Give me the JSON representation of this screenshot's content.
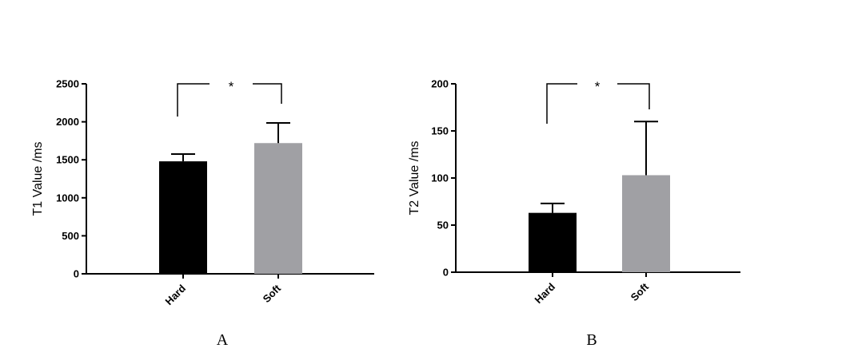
{
  "chart_data": [
    {
      "type": "bar",
      "panel_label": "A",
      "ylabel": "T1 Value /ms",
      "categories": [
        "Hard",
        "Soft"
      ],
      "values": [
        1480,
        1720
      ],
      "error_upper": [
        1575,
        1985
      ],
      "bar_colors": [
        "#000000",
        "#a0a0a4"
      ],
      "ylim": [
        0,
        2500
      ],
      "yticks": [
        "0",
        "500",
        "1000",
        "1500",
        "2000",
        "2500"
      ],
      "significance": "*"
    },
    {
      "type": "bar",
      "panel_label": "B",
      "ylabel": "T2 Value /ms",
      "categories": [
        "Hard",
        "Soft"
      ],
      "values": [
        63,
        103
      ],
      "error_upper": [
        73,
        160
      ],
      "bar_colors": [
        "#000000",
        "#a0a0a4"
      ],
      "ylim": [
        0,
        200
      ],
      "yticks": [
        "0",
        "50",
        "100",
        "150",
        "200"
      ],
      "significance": "*"
    }
  ]
}
